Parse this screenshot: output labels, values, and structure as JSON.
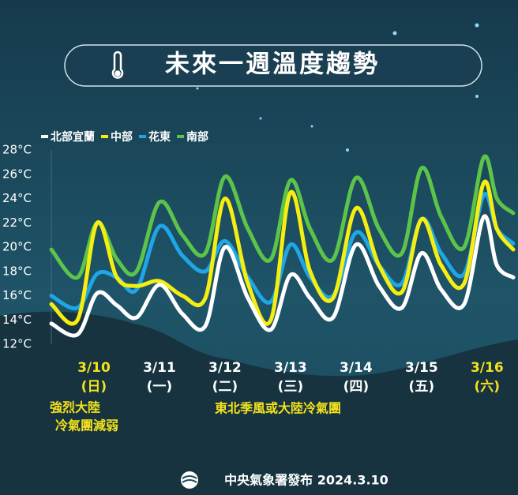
{
  "chart_data": {
    "type": "line",
    "title": "未來一週溫度趨勢",
    "x": [
      -0.65,
      -0.25,
      0.05,
      0.35,
      0.65,
      1,
      1.35,
      1.7,
      2,
      2.35,
      2.7,
      3,
      3.3,
      3.65,
      4,
      4.35,
      4.7,
      5,
      5.3,
      5.65,
      5.95,
      6.15,
      6.4
    ],
    "xlim": [
      -0.65,
      6.4
    ],
    "xticks": [
      {
        "value": 0,
        "label": "3/10"
      },
      {
        "value": 1,
        "label": "3/11"
      },
      {
        "value": 2,
        "label": "3/12"
      },
      {
        "value": 3,
        "label": "3/13"
      },
      {
        "value": 4,
        "label": "3/14"
      },
      {
        "value": 5,
        "label": "3/15"
      },
      {
        "value": 6,
        "label": "3/16"
      }
    ],
    "weekday_labels": [
      "(日)",
      "(一)",
      "(二)",
      "(三)",
      "(四)",
      "(五)",
      "(六)"
    ],
    "xtick_colors": [
      "#f4e21c",
      "#ffffff",
      "#ffffff",
      "#ffffff",
      "#ffffff",
      "#ffffff",
      "#f4e21c"
    ],
    "ylim": [
      12,
      28
    ],
    "yticks": [
      {
        "value": 28,
        "label": "28°C"
      },
      {
        "value": 26,
        "label": "26°C"
      },
      {
        "value": 24,
        "label": "24°C"
      },
      {
        "value": 22,
        "label": "22°C"
      },
      {
        "value": 20,
        "label": "20°C"
      },
      {
        "value": 18,
        "label": "18°C"
      },
      {
        "value": 16,
        "label": "16°C"
      },
      {
        "value": 14,
        "label": "14°C"
      },
      {
        "value": 12,
        "label": "12°C"
      }
    ],
    "series": [
      {
        "name": "北部宜蘭",
        "color": "#ffffff",
        "values": [
          13.7,
          12.8,
          16.2,
          15.2,
          14.2,
          16.9,
          14.5,
          13.5,
          20.0,
          15.8,
          13.2,
          17.7,
          15.8,
          14.2,
          20.2,
          16.8,
          15.0,
          19.5,
          16.5,
          15.3,
          22.5,
          18.5,
          17.5
        ]
      },
      {
        "name": "中部",
        "color": "#f5ee10",
        "values": [
          15.3,
          14.0,
          22.0,
          17.5,
          16.8,
          17.2,
          16.0,
          15.8,
          24.0,
          17.0,
          14.0,
          24.5,
          18.0,
          15.8,
          23.2,
          18.5,
          16.3,
          22.3,
          18.5,
          17.0,
          25.3,
          21.5,
          19.8
        ]
      },
      {
        "name": "花東",
        "color": "#1ea6e6",
        "values": [
          16.0,
          15.0,
          17.8,
          17.5,
          16.5,
          21.7,
          19.3,
          18.0,
          20.5,
          17.5,
          15.5,
          20.2,
          17.5,
          16.0,
          21.2,
          18.5,
          17.0,
          22.3,
          19.5,
          17.8,
          24.3,
          21.5,
          20.3
        ]
      },
      {
        "name": "南部",
        "color": "#5cc44a",
        "values": [
          19.8,
          17.5,
          22.0,
          19.0,
          18.0,
          23.7,
          21.0,
          19.5,
          25.8,
          21.5,
          19.0,
          25.5,
          21.5,
          19.0,
          25.7,
          21.5,
          19.5,
          26.5,
          22.5,
          20.0,
          27.4,
          24.0,
          22.8
        ]
      }
    ],
    "annotations": [
      "強烈大陸",
      "冷氣團減弱",
      "東北季風或大陸冷氣團"
    ],
    "source": "中央氣象署發布 2024.3.10"
  }
}
